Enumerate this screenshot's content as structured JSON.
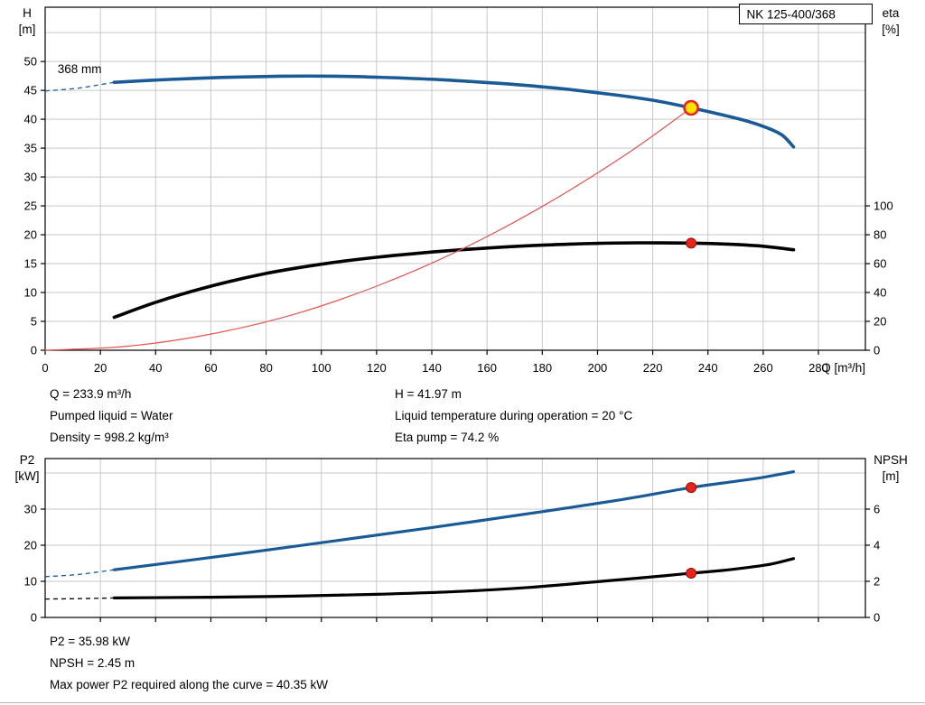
{
  "colors": {
    "curve_blue": "#1a5a96",
    "curve_black": "#000000",
    "curve_red": "#e25555",
    "op_red": "#e8231c",
    "op_red_dark": "#8f1007",
    "op_yellow": "#ffe100"
  },
  "chart_data": [
    {
      "type": "line",
      "name": "qh-eta-chart",
      "title": "NK 125-400/368",
      "x": {
        "label": "Q [m³/h]",
        "min": 0,
        "max": 297,
        "tick_min": 0,
        "tick_max": 280,
        "tick_step": 20,
        "show_tick_labels": true
      },
      "y_left": {
        "name": "H",
        "unit": "[m]",
        "min": 0,
        "max": 59.4,
        "ticks": [
          0,
          5,
          10,
          15,
          20,
          25,
          30,
          35,
          40,
          45,
          50
        ],
        "grid": [
          5,
          10,
          15,
          20,
          25,
          30,
          35,
          40,
          45,
          50,
          55
        ]
      },
      "y_right": {
        "name": "eta",
        "unit": "[%]",
        "ticks": [
          0,
          20,
          40,
          60,
          80,
          100
        ],
        "left_per_right": 0.25
      },
      "annotation": {
        "text": "368 mm",
        "q": 4.5,
        "v": 48.0
      },
      "series": [
        {
          "name": "head-curve",
          "color_key": "blue",
          "width": 3.6,
          "axis": "left",
          "dash": [
            [
              0,
              44.9
            ],
            [
              12,
              45.4
            ],
            [
              25,
              46.4
            ]
          ],
          "points": [
            [
              25,
              46.4
            ],
            [
              45,
              46.9
            ],
            [
              65,
              47.25
            ],
            [
              85,
              47.45
            ],
            [
              105,
              47.45
            ],
            [
              125,
              47.2
            ],
            [
              145,
              46.8
            ],
            [
              165,
              46.2
            ],
            [
              185,
              45.4
            ],
            [
              205,
              44.3
            ],
            [
              220,
              43.3
            ],
            [
              233.9,
              41.97
            ],
            [
              244,
              40.9
            ],
            [
              254,
              39.7
            ],
            [
              262,
              38.4
            ],
            [
              267,
              37.2
            ],
            [
              271,
              35.2
            ]
          ]
        },
        {
          "name": "efficiency-curve",
          "color_key": "black",
          "width": 3.6,
          "axis": "right",
          "points": [
            [
              25,
              22.8
            ],
            [
              40,
              33.2
            ],
            [
              60,
              44.4
            ],
            [
              80,
              53.2
            ],
            [
              100,
              59.6
            ],
            [
              120,
              64.4
            ],
            [
              140,
              68.0
            ],
            [
              160,
              70.8
            ],
            [
              180,
              72.8
            ],
            [
              200,
              74.0
            ],
            [
              215,
              74.4
            ],
            [
              233.9,
              74.2
            ],
            [
              248,
              73.4
            ],
            [
              260,
              72.0
            ],
            [
              271,
              69.6
            ]
          ]
        },
        {
          "name": "duty-parabola",
          "color_key": "red",
          "width": 1.2,
          "axis": "left",
          "points": [
            [
              0,
              0
            ],
            [
              30,
              0.7
            ],
            [
              60,
              2.8
            ],
            [
              90,
              6.2
            ],
            [
              120,
              11.1
            ],
            [
              150,
              17.3
            ],
            [
              180,
              24.9
            ],
            [
              210,
              33.8
            ],
            [
              233.9,
              41.97
            ]
          ]
        }
      ],
      "markers": [
        {
          "name": "duty-point-head",
          "q": 233.9,
          "v": 41.97,
          "axis": "left",
          "style": "yellow"
        },
        {
          "name": "duty-point-eta",
          "q": 233.9,
          "v": 74.2,
          "axis": "right",
          "style": "red"
        }
      ]
    },
    {
      "type": "line",
      "name": "p2-npsh-chart",
      "x": {
        "min": 0,
        "max": 297,
        "tick_min": 20,
        "tick_max": 280,
        "tick_step": 20,
        "show_tick_labels": false
      },
      "y_left": {
        "name": "P2",
        "unit": "[kW]",
        "min": 0,
        "max": 44,
        "ticks": [
          0,
          10,
          20,
          30
        ],
        "grid": [
          10,
          20,
          30,
          40
        ]
      },
      "y_right": {
        "name": "NPSH",
        "unit": "[m]",
        "ticks": [
          0,
          2,
          4,
          6
        ],
        "left_per_right": 5
      },
      "series": [
        {
          "name": "p2-curve",
          "color_key": "blue",
          "width": 3.2,
          "axis": "left",
          "dash": [
            [
              0,
              11.3
            ],
            [
              12,
              11.9
            ],
            [
              25,
              13.2
            ]
          ],
          "points": [
            [
              25,
              13.2
            ],
            [
              60,
              16.6
            ],
            [
              100,
              20.7
            ],
            [
              140,
              24.9
            ],
            [
              180,
              29.3
            ],
            [
              210,
              32.8
            ],
            [
              233.9,
              35.98
            ],
            [
              250,
              37.7
            ],
            [
              260,
              38.8
            ],
            [
              271,
              40.35
            ]
          ]
        },
        {
          "name": "npsh-curve",
          "color_key": "black",
          "width": 3.2,
          "axis": "right",
          "dash": [
            [
              0,
              1.02
            ],
            [
              12,
              1.04
            ],
            [
              25,
              1.08
            ]
          ],
          "points": [
            [
              25,
              1.08
            ],
            [
              60,
              1.12
            ],
            [
              90,
              1.18
            ],
            [
              120,
              1.28
            ],
            [
              150,
              1.44
            ],
            [
              175,
              1.66
            ],
            [
              200,
              1.98
            ],
            [
              215,
              2.18
            ],
            [
              225,
              2.32
            ],
            [
              233.9,
              2.45
            ],
            [
              245,
              2.6
            ],
            [
              255,
              2.78
            ],
            [
              263,
              2.96
            ],
            [
              271,
              3.26
            ]
          ]
        }
      ],
      "markers": [
        {
          "name": "duty-point-p2",
          "q": 233.9,
          "v": 35.98,
          "axis": "left",
          "style": "red"
        },
        {
          "name": "duty-point-npsh",
          "q": 233.9,
          "v": 2.45,
          "axis": "right",
          "style": "red"
        }
      ]
    }
  ],
  "info_top": {
    "left": [
      "Q = 233.9 m³/h",
      "Pumped liquid = Water",
      "Density = 998.2 kg/m³"
    ],
    "right": [
      "H = 41.97 m",
      "Liquid temperature during operation = 20 °C",
      "Eta pump = 74.2 %"
    ]
  },
  "info_bottom": [
    "P2 = 35.98 kW",
    "NPSH = 2.45 m",
    "Max power P2 required along the curve = 40.35 kW"
  ]
}
